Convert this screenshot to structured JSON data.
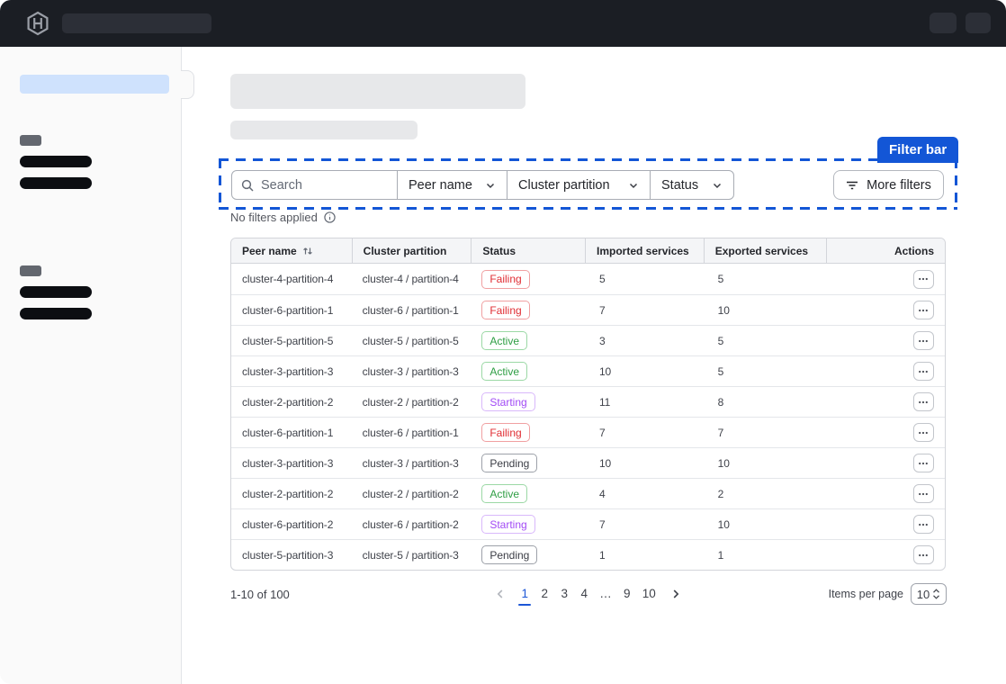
{
  "annotation": {
    "label": "Filter bar"
  },
  "filter_bar": {
    "search_placeholder": "Search",
    "dropdowns": [
      {
        "label": "Peer name"
      },
      {
        "label": "Cluster partition"
      },
      {
        "label": "Status"
      }
    ],
    "more_filters_label": "More filters",
    "applied_text": "No filters applied"
  },
  "table": {
    "columns": [
      "Peer name",
      "Cluster partition",
      "Status",
      "Imported services",
      "Exported services",
      "Actions"
    ],
    "rows": [
      {
        "peer": "cluster-4-partition-4",
        "partition": "cluster-4 / partition-4",
        "status": "Failing",
        "imported": "5",
        "exported": "5"
      },
      {
        "peer": "cluster-6-partition-1",
        "partition": "cluster-6 / partition-1",
        "status": "Failing",
        "imported": "7",
        "exported": "10"
      },
      {
        "peer": "cluster-5-partition-5",
        "partition": "cluster-5 / partition-5",
        "status": "Active",
        "imported": "3",
        "exported": "5"
      },
      {
        "peer": "cluster-3-partition-3",
        "partition": "cluster-3 / partition-3",
        "status": "Active",
        "imported": "10",
        "exported": "5"
      },
      {
        "peer": "cluster-2-partition-2",
        "partition": "cluster-2 / partition-2",
        "status": "Starting",
        "imported": "11",
        "exported": "8"
      },
      {
        "peer": "cluster-6-partition-1",
        "partition": "cluster-6 / partition-1",
        "status": "Failing",
        "imported": "7",
        "exported": "7"
      },
      {
        "peer": "cluster-3-partition-3",
        "partition": "cluster-3 / partition-3",
        "status": "Pending",
        "imported": "10",
        "exported": "10"
      },
      {
        "peer": "cluster-2-partition-2",
        "partition": "cluster-2 / partition-2",
        "status": "Active",
        "imported": "4",
        "exported": "2"
      },
      {
        "peer": "cluster-6-partition-2",
        "partition": "cluster-6 / partition-2",
        "status": "Starting",
        "imported": "7",
        "exported": "10"
      },
      {
        "peer": "cluster-5-partition-3",
        "partition": "cluster-5 / partition-3",
        "status": "Pending",
        "imported": "1",
        "exported": "1"
      }
    ]
  },
  "pagination": {
    "range_text": "1-10 of 100",
    "pages": [
      "1",
      "2",
      "3",
      "4",
      "…",
      "9",
      "10"
    ],
    "current_page": "1",
    "items_per_page_label": "Items per page",
    "items_per_page_value": "10"
  },
  "colors": {
    "accent_blue": "#1356d6",
    "pagination_blue": "#1c56d6",
    "status": {
      "Failing": {
        "text": "#e02d33",
        "border": "#f0a0a2"
      },
      "Active": {
        "text": "#2f9e44",
        "border": "#9bd8a5"
      },
      "Starting": {
        "text": "#a24bf5",
        "border": "#d9b8fb"
      },
      "Pending": {
        "text": "#3b3d45",
        "border": "#9da1a9"
      }
    }
  }
}
